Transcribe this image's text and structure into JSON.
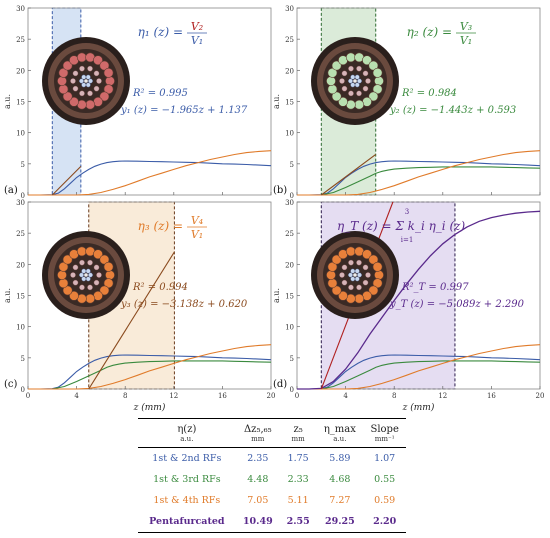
{
  "colors": {
    "blue": "#3b5ca8",
    "green": "#3a8a3e",
    "orange": "#e07b2a",
    "brown": "#8a4a1e",
    "purple": "#5a2a8c",
    "red": "#b02020"
  },
  "axes": {
    "ylabel": "a.u.",
    "xlabel": "z (mm)"
  },
  "panels": [
    {
      "id": "a",
      "panel_label": "(a)",
      "eq_lhs": "η₁ (z) =",
      "eq_num": "V₂",
      "eq_den": "V₁",
      "eq_color": "blue",
      "r2": "R² =  0.995",
      "fit": "y₁ (z) = −1.965z + 1.137",
      "fit_color": "blue",
      "highlight": {
        "x0": 2.0,
        "x1": 4.35,
        "color": "#c8daf0",
        "edge": "#3b5ca8"
      },
      "cable": {
        "ring": "#d06a6a",
        "inner": "#e8dada"
      }
    },
    {
      "id": "b",
      "panel_label": "(b)",
      "eq_lhs": "η₂ (z) =",
      "eq_num": "V₃",
      "eq_den": "V₁",
      "eq_color": "green",
      "r2": "R² =  0.984",
      "fit": "y₂ (z) = −1.443z + 0.593",
      "fit_color": "green",
      "highlight": {
        "x0": 2.0,
        "x1": 6.48,
        "color": "#cfe4cc",
        "edge": "#2d6a30"
      },
      "cable": {
        "ring": "#b8e0b0",
        "inner": "#e8dada"
      }
    },
    {
      "id": "c",
      "panel_label": "(c)",
      "eq_lhs": "η₃ (z) =",
      "eq_num": "V₄",
      "eq_den": "V₁",
      "eq_color": "orange",
      "r2": "R² =  0.994",
      "fit": "y₃ (z) = −3.138z + 0.620",
      "fit_color": "brown",
      "highlight": {
        "x0": 5.0,
        "x1": 12.05,
        "color": "#f7e4cc",
        "edge": "#6a3a1a"
      },
      "cable": {
        "ring": "#e8803a",
        "inner": "#e8dada"
      }
    },
    {
      "id": "d",
      "panel_label": "(d)",
      "eq_lhs": "η_T (z) = Σ k_i η_i (z)",
      "eq_sum_top": "3",
      "eq_sum_bot": "i=1",
      "eq_color": "purple",
      "r2": "R²_T =  0.997",
      "fit": "y_T (z) = −5.089z + 2.290",
      "fit_color": "purple",
      "highlight": {
        "x0": 2.0,
        "x1": 13.0,
        "color": "#dcd2ee",
        "edge": "#2a1a4a"
      },
      "cable": {
        "ring": "#e8803a",
        "inner": "#e8dada"
      }
    }
  ],
  "chart_data": {
    "type": "line",
    "xlabel": "z (mm)",
    "ylabel": "a.u.",
    "xlim": [
      0,
      20
    ],
    "ylim": [
      0,
      30
    ],
    "xticks": [
      0,
      4,
      8,
      12,
      16,
      20
    ],
    "yticks": [
      0,
      5,
      10,
      15,
      20,
      25,
      30
    ],
    "series": [
      {
        "key": "blue",
        "color": "blue",
        "x": [
          0,
          1,
          2,
          2.5,
          3,
          3.5,
          4,
          4.5,
          5,
          5.5,
          6,
          6.5,
          7,
          7.5,
          8,
          9,
          10,
          11,
          12,
          13,
          14,
          15,
          16,
          17,
          18,
          19,
          20
        ],
        "y": [
          0,
          0,
          0.05,
          0.3,
          1.0,
          1.9,
          2.8,
          3.5,
          4.1,
          4.6,
          4.95,
          5.2,
          5.35,
          5.42,
          5.45,
          5.42,
          5.38,
          5.35,
          5.3,
          5.25,
          5.2,
          5.1,
          5.0,
          4.95,
          4.9,
          4.8,
          4.7
        ]
      },
      {
        "key": "green",
        "color": "green",
        "x": [
          0,
          1,
          2,
          3,
          4,
          5,
          6,
          6.5,
          7,
          7.5,
          8,
          9,
          10,
          11,
          12,
          13,
          14,
          15,
          16,
          17,
          18,
          19,
          20
        ],
        "y": [
          0,
          0,
          0,
          0.4,
          1.2,
          2.1,
          3.0,
          3.5,
          3.8,
          4.0,
          4.15,
          4.3,
          4.4,
          4.45,
          4.5,
          4.5,
          4.5,
          4.5,
          4.5,
          4.45,
          4.4,
          4.35,
          4.3
        ]
      },
      {
        "key": "orange",
        "color": "orange",
        "x": [
          0,
          1,
          2,
          3,
          4,
          5,
          6,
          7,
          8,
          9,
          10,
          11,
          12,
          13,
          14,
          15,
          16,
          17,
          18,
          19,
          20
        ],
        "y": [
          0,
          0,
          0,
          0,
          0,
          0.1,
          0.4,
          0.9,
          1.5,
          2.2,
          2.9,
          3.5,
          4.1,
          4.7,
          5.2,
          5.7,
          6.1,
          6.5,
          6.8,
          7.0,
          7.1
        ]
      },
      {
        "key": "purple",
        "color": "purple",
        "x": [
          0,
          1,
          2,
          3,
          4,
          5,
          6,
          7,
          8,
          9,
          10,
          11,
          12,
          13,
          14,
          15,
          16,
          17,
          18,
          19,
          20
        ],
        "y": [
          0,
          0,
          0.1,
          1.2,
          3.2,
          5.8,
          8.8,
          11.5,
          14.2,
          16.8,
          19.2,
          21.4,
          23.3,
          24.8,
          26.0,
          26.9,
          27.5,
          27.9,
          28.2,
          28.4,
          28.5
        ]
      }
    ],
    "panel_series": {
      "a": [
        "blue",
        "orange"
      ],
      "b": [
        "blue",
        "green",
        "orange"
      ],
      "c": [
        "blue",
        "green",
        "orange"
      ],
      "d": [
        "blue",
        "green",
        "orange",
        "purple"
      ]
    },
    "fit_lines": {
      "a": {
        "x": [
          2.0,
          4.35
        ],
        "y": [
          0.0,
          4.6
        ],
        "color": "brown"
      },
      "b": {
        "x": [
          2.0,
          6.48
        ],
        "y": [
          0.0,
          6.5
        ],
        "color": "brown"
      },
      "c": {
        "x": [
          5.0,
          12.05
        ],
        "y": [
          0.0,
          22.0
        ],
        "color": "brown"
      },
      "d": {
        "x": [
          2.0,
          13.0
        ],
        "y": [
          0.0,
          56.0
        ],
        "color": "red"
      }
    }
  },
  "table": {
    "headers": [
      "η(z)",
      "Δz₅,₆₅",
      "z₅",
      "η_max",
      "Slope"
    ],
    "units": [
      "a.u.",
      "mm",
      "mm",
      "a.u.",
      "mm⁻¹"
    ],
    "rows": [
      {
        "label": "1st & 2nd RFs",
        "color": "blue",
        "values": [
          "2.35",
          "1.75",
          "5.89",
          "1.07"
        ]
      },
      {
        "label": "1st & 3rd RFs",
        "color": "green",
        "values": [
          "4.48",
          "2.33",
          "4.68",
          "0.55"
        ]
      },
      {
        "label": "1st & 4th RFs",
        "color": "orange",
        "values": [
          "7.05",
          "5.11",
          "7.27",
          "0.59"
        ]
      },
      {
        "label": "Pentafurcated",
        "color": "purple",
        "values": [
          "10.49",
          "2.55",
          "29.25",
          "2.20"
        ]
      }
    ]
  }
}
